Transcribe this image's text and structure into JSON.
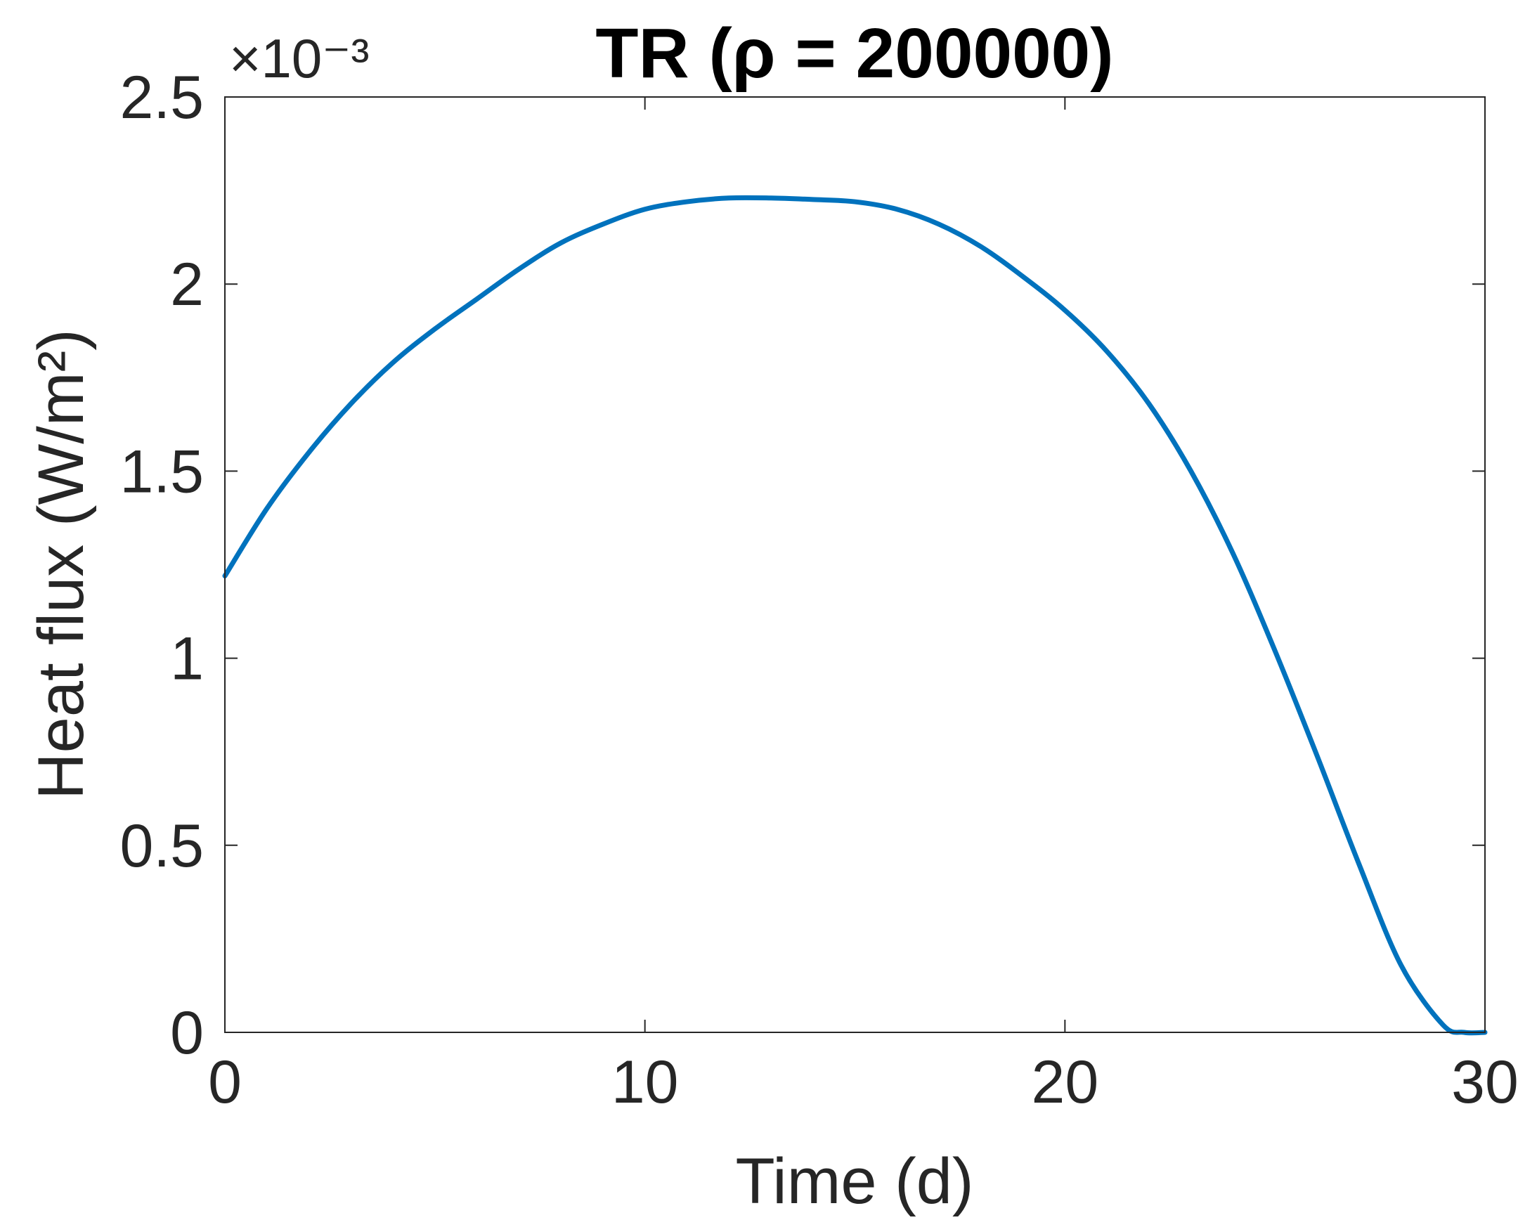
{
  "chart_data": {
    "type": "line",
    "title": "TR (ρ = 200000)",
    "xlabel": "Time (d)",
    "ylabel": "Heat flux (W/m²)",
    "y_exponent_label": "×10⁻³",
    "xlim": [
      0,
      30
    ],
    "ylim": [
      0,
      2.5
    ],
    "x_ticks": [
      0,
      10,
      20,
      30
    ],
    "y_ticks": [
      0,
      0.5,
      1,
      1.5,
      2,
      2.5
    ],
    "x_tick_labels": [
      "0",
      "10",
      "20",
      "30"
    ],
    "y_tick_labels": [
      "0",
      "0.5",
      "1",
      "1.5",
      "2",
      "2.5"
    ],
    "grid": false,
    "series": [
      {
        "color": "#0072BD",
        "x": [
          0,
          1,
          2,
          3,
          4,
          5,
          6,
          7,
          8,
          9,
          10,
          11,
          12,
          13,
          14,
          15,
          16,
          17,
          18,
          19,
          20,
          21,
          22,
          23,
          24,
          25,
          26,
          27,
          28,
          29,
          29.5,
          30
        ],
        "values": [
          1.22,
          1.4,
          1.55,
          1.68,
          1.79,
          1.88,
          1.96,
          2.04,
          2.11,
          2.16,
          2.2,
          2.22,
          2.23,
          2.23,
          2.226,
          2.22,
          2.2,
          2.16,
          2.1,
          2.02,
          1.93,
          1.82,
          1.68,
          1.5,
          1.28,
          1.02,
          0.74,
          0.45,
          0.18,
          0.02,
          0.0,
          0.0
        ]
      }
    ]
  }
}
